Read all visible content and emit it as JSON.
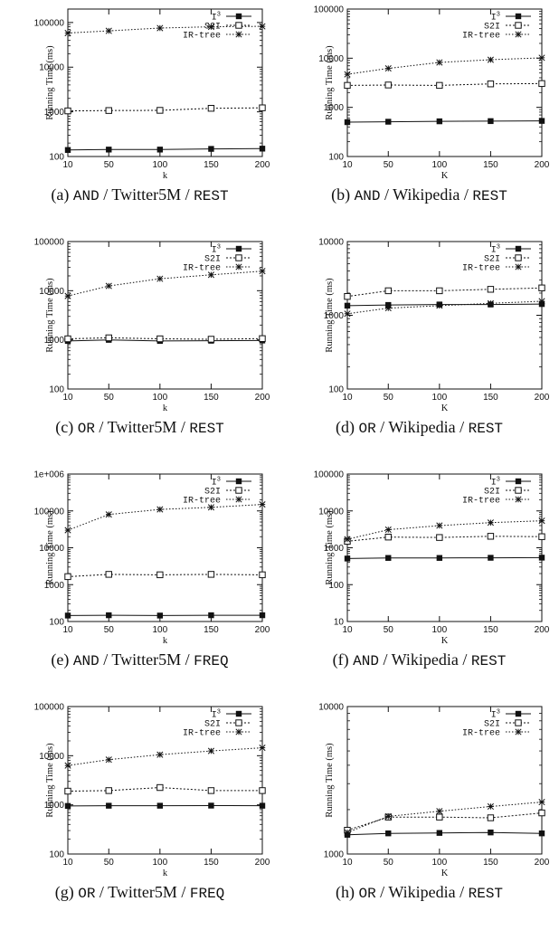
{
  "series_legend": [
    "I",
    "S2I",
    "IR-tree"
  ],
  "legend_superscript": "3",
  "colors": {
    "ink": "#111111"
  },
  "chart_data": [
    {
      "type": "line",
      "caption": {
        "label": "(a)",
        "query": "AND",
        "dataset": "Twitter5M",
        "workload": "REST"
      },
      "xlabel": "k",
      "ylabel": "Running Time (ms)",
      "x": [
        10,
        50,
        100,
        150,
        200
      ],
      "yscale": "log",
      "ylim": [
        100,
        200000
      ],
      "yticks": [
        100,
        1000,
        10000,
        100000
      ],
      "ytick_labels": [
        "100",
        "1000",
        "10000",
        "100000"
      ],
      "xtick_labels": [
        "10",
        "50",
        "100",
        "150",
        "200"
      ],
      "series": [
        {
          "name": "I3",
          "values": [
            140,
            143,
            143,
            148,
            150
          ]
        },
        {
          "name": "S2I",
          "values": [
            1050,
            1070,
            1080,
            1200,
            1230
          ]
        },
        {
          "name": "IR-tree",
          "values": [
            58000,
            65000,
            75000,
            80000,
            82000
          ]
        }
      ]
    },
    {
      "type": "line",
      "caption": {
        "label": "(b)",
        "query": "AND",
        "dataset": "Wikipedia",
        "workload": "REST"
      },
      "xlabel": "K",
      "ylabel": "Running Time (ms)",
      "x": [
        10,
        50,
        100,
        150,
        200
      ],
      "yscale": "log",
      "ylim": [
        100,
        100000
      ],
      "yticks": [
        100,
        1000,
        10000,
        100000
      ],
      "ytick_labels": [
        "100",
        "1000",
        "10000",
        "100000"
      ],
      "xtick_labels": [
        "10",
        "50",
        "100",
        "150",
        "200"
      ],
      "series": [
        {
          "name": "I3",
          "values": [
            500,
            510,
            520,
            525,
            530
          ]
        },
        {
          "name": "S2I",
          "values": [
            2800,
            2850,
            2800,
            3000,
            3050
          ]
        },
        {
          "name": "IR-tree",
          "values": [
            4700,
            6200,
            8200,
            9300,
            10200
          ]
        }
      ]
    },
    {
      "type": "line",
      "caption": {
        "label": "(c)",
        "query": "OR",
        "dataset": "Twitter5M",
        "workload": "REST"
      },
      "xlabel": "k",
      "ylabel": "Running Time (ms)",
      "x": [
        10,
        50,
        100,
        150,
        200
      ],
      "yscale": "log",
      "ylim": [
        100,
        100000
      ],
      "yticks": [
        100,
        1000,
        10000,
        100000
      ],
      "ytick_labels": [
        "100",
        "1000",
        "10000",
        "100000"
      ],
      "xtick_labels": [
        "10",
        "50",
        "100",
        "150",
        "200"
      ],
      "series": [
        {
          "name": "I3",
          "values": [
            950,
            1000,
            950,
            960,
            970
          ]
        },
        {
          "name": "S2I",
          "values": [
            1050,
            1100,
            1050,
            1030,
            1060
          ]
        },
        {
          "name": "IR-tree",
          "values": [
            7800,
            12500,
            17500,
            21000,
            25000
          ]
        }
      ]
    },
    {
      "type": "line",
      "caption": {
        "label": "(d)",
        "query": "OR",
        "dataset": "Wikipedia",
        "workload": "REST"
      },
      "xlabel": "K",
      "ylabel": "Running Time (ms)",
      "x": [
        10,
        50,
        100,
        150,
        200
      ],
      "yscale": "log",
      "ylim": [
        100,
        10000
      ],
      "yticks": [
        100,
        1000,
        10000
      ],
      "ytick_labels": [
        "100",
        "1000",
        "10000"
      ],
      "xtick_labels": [
        "10",
        "50",
        "100",
        "150",
        "200"
      ],
      "series": [
        {
          "name": "I3",
          "values": [
            1350,
            1380,
            1400,
            1400,
            1420
          ]
        },
        {
          "name": "S2I",
          "values": [
            1800,
            2150,
            2150,
            2250,
            2350
          ]
        },
        {
          "name": "IR-tree",
          "values": [
            1050,
            1250,
            1350,
            1450,
            1550
          ]
        }
      ]
    },
    {
      "type": "line",
      "caption": {
        "label": "(e)",
        "query": "AND",
        "dataset": "Twitter5M",
        "workload": "FREQ"
      },
      "xlabel": "k",
      "ylabel": "Running Time (ms)",
      "x": [
        10,
        50,
        100,
        150,
        200
      ],
      "yscale": "log",
      "ylim": [
        100,
        1000000
      ],
      "yticks": [
        100,
        1000,
        10000,
        100000,
        1000000
      ],
      "ytick_labels": [
        "100",
        "1000",
        "10000",
        "100000",
        "1e+006"
      ],
      "xtick_labels": [
        "10",
        "50",
        "100",
        "150",
        "200"
      ],
      "series": [
        {
          "name": "I3",
          "values": [
            145,
            148,
            145,
            148,
            148
          ]
        },
        {
          "name": "S2I",
          "values": [
            1650,
            1900,
            1850,
            1900,
            1850
          ]
        },
        {
          "name": "IR-tree",
          "values": [
            30000,
            80000,
            110000,
            125000,
            150000
          ]
        }
      ]
    },
    {
      "type": "line",
      "caption": {
        "label": "(f)",
        "query": "AND",
        "dataset": "Wikipedia",
        "workload": "REST"
      },
      "xlabel": "K",
      "ylabel": "Running Time (ms)",
      "x": [
        10,
        50,
        100,
        150,
        200
      ],
      "yscale": "log",
      "ylim": [
        10,
        100000
      ],
      "yticks": [
        10,
        100,
        1000,
        10000,
        100000
      ],
      "ytick_labels": [
        "10",
        "100",
        "1000",
        "10000",
        "100000"
      ],
      "xtick_labels": [
        "10",
        "50",
        "100",
        "150",
        "200"
      ],
      "series": [
        {
          "name": "I3",
          "values": [
            510,
            530,
            530,
            535,
            540
          ]
        },
        {
          "name": "S2I",
          "values": [
            1500,
            1950,
            1900,
            2050,
            2000
          ]
        },
        {
          "name": "IR-tree",
          "values": [
            1700,
            3100,
            4000,
            4800,
            5400
          ]
        }
      ]
    },
    {
      "type": "line",
      "caption": {
        "label": "(g)",
        "query": "OR",
        "dataset": "Twitter5M",
        "workload": "FREQ"
      },
      "xlabel": "k",
      "ylabel": "Running Time (ms)",
      "x": [
        10,
        50,
        100,
        150,
        200
      ],
      "yscale": "log",
      "ylim": [
        100,
        100000
      ],
      "yticks": [
        100,
        1000,
        10000,
        100000
      ],
      "ytick_labels": [
        "100",
        "1000",
        "10000",
        "100000"
      ],
      "xtick_labels": [
        "10",
        "50",
        "100",
        "150",
        "200"
      ],
      "series": [
        {
          "name": "I3",
          "values": [
            950,
            960,
            960,
            965,
            960
          ]
        },
        {
          "name": "S2I",
          "values": [
            1900,
            1950,
            2250,
            1950,
            1950
          ]
        },
        {
          "name": "IR-tree",
          "values": [
            6300,
            8300,
            10500,
            12500,
            14500
          ]
        }
      ]
    },
    {
      "type": "line",
      "caption": {
        "label": "(h)",
        "query": "OR",
        "dataset": "Wikipedia",
        "workload": "REST"
      },
      "xlabel": "K",
      "ylabel": "Running Time (ms)",
      "x": [
        10,
        50,
        100,
        150,
        200
      ],
      "yscale": "log",
      "ylim": [
        1000,
        10000
      ],
      "yticks": [
        1000,
        10000
      ],
      "ytick_labels": [
        "1000",
        "10000"
      ],
      "xtick_labels": [
        "10",
        "50",
        "100",
        "150",
        "200"
      ],
      "series": [
        {
          "name": "I3",
          "values": [
            1350,
            1380,
            1390,
            1400,
            1380
          ]
        },
        {
          "name": "S2I",
          "values": [
            1450,
            1780,
            1780,
            1760,
            1900
          ]
        },
        {
          "name": "IR-tree",
          "values": [
            1400,
            1800,
            1950,
            2100,
            2250
          ]
        }
      ]
    }
  ]
}
